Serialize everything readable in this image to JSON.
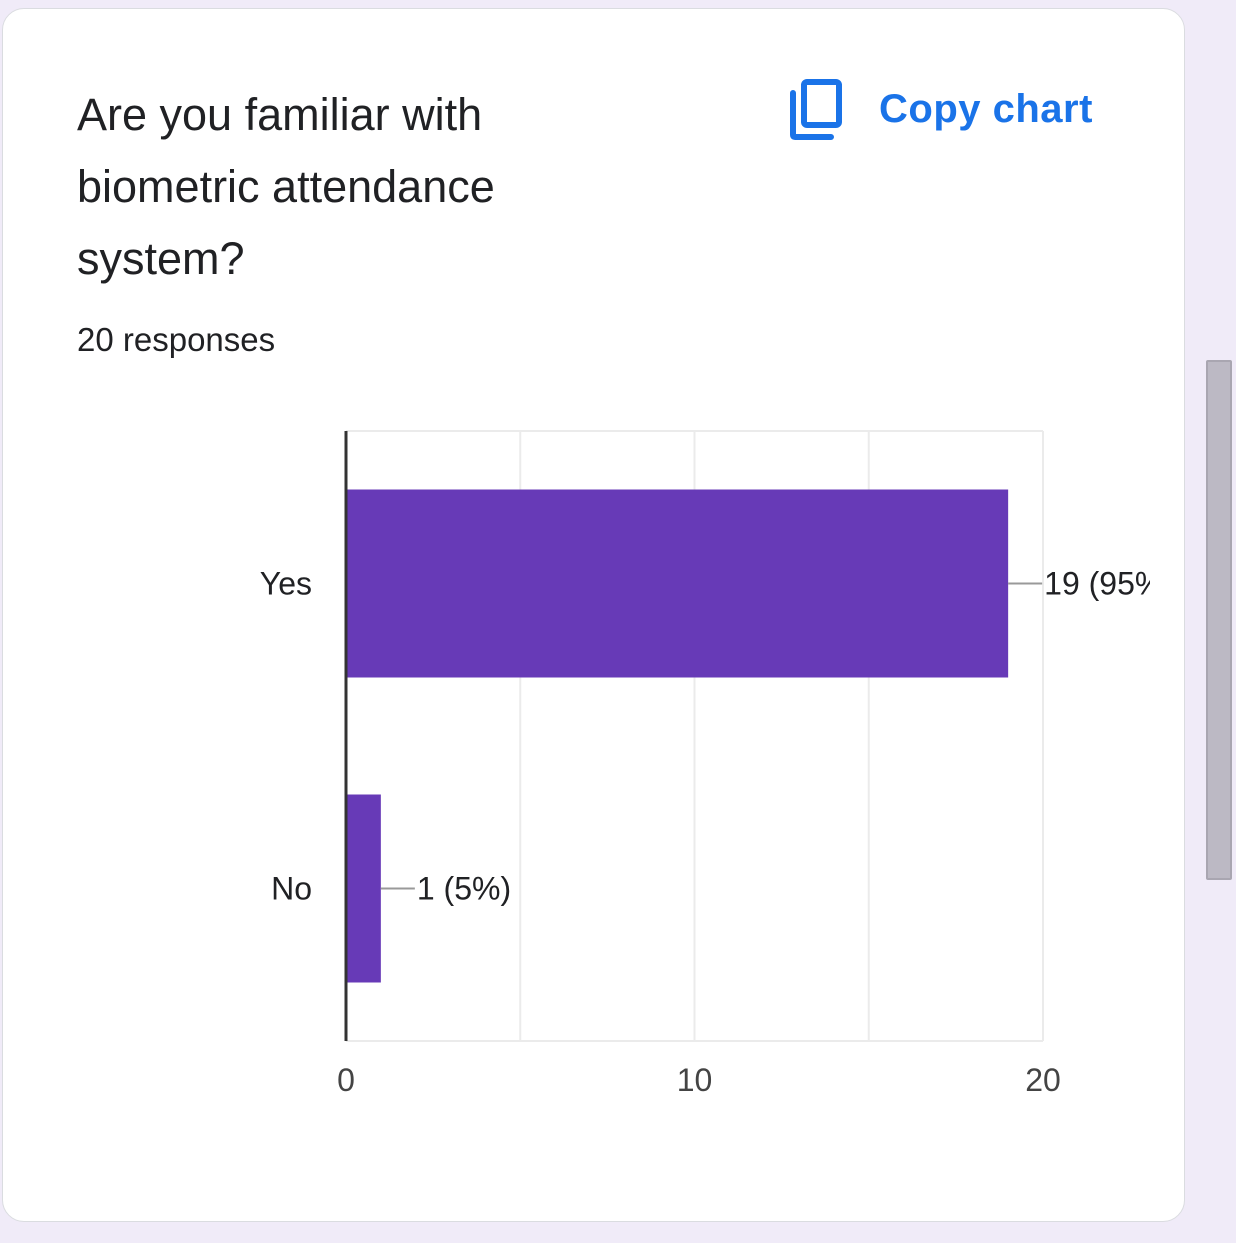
{
  "question": {
    "title": "Are you familiar with biometric attendance system?",
    "responses": "20 responses"
  },
  "actions": {
    "copy_chart_label": "Copy chart",
    "copy_chart_icon": "copy-icon"
  },
  "colors": {
    "bar": "#673ab7",
    "accent": "#1a73e8"
  },
  "chart_data": {
    "type": "bar",
    "orientation": "horizontal",
    "categories": [
      "Yes",
      "No"
    ],
    "values": [
      19,
      1
    ],
    "data_labels": [
      "19 (95%",
      "1 (5%)"
    ],
    "xlim": [
      0,
      20
    ],
    "x_ticks": [
      0,
      10,
      20
    ],
    "x_tick_labels": [
      "0",
      "10",
      "20"
    ],
    "grid": true,
    "legend": "none"
  }
}
